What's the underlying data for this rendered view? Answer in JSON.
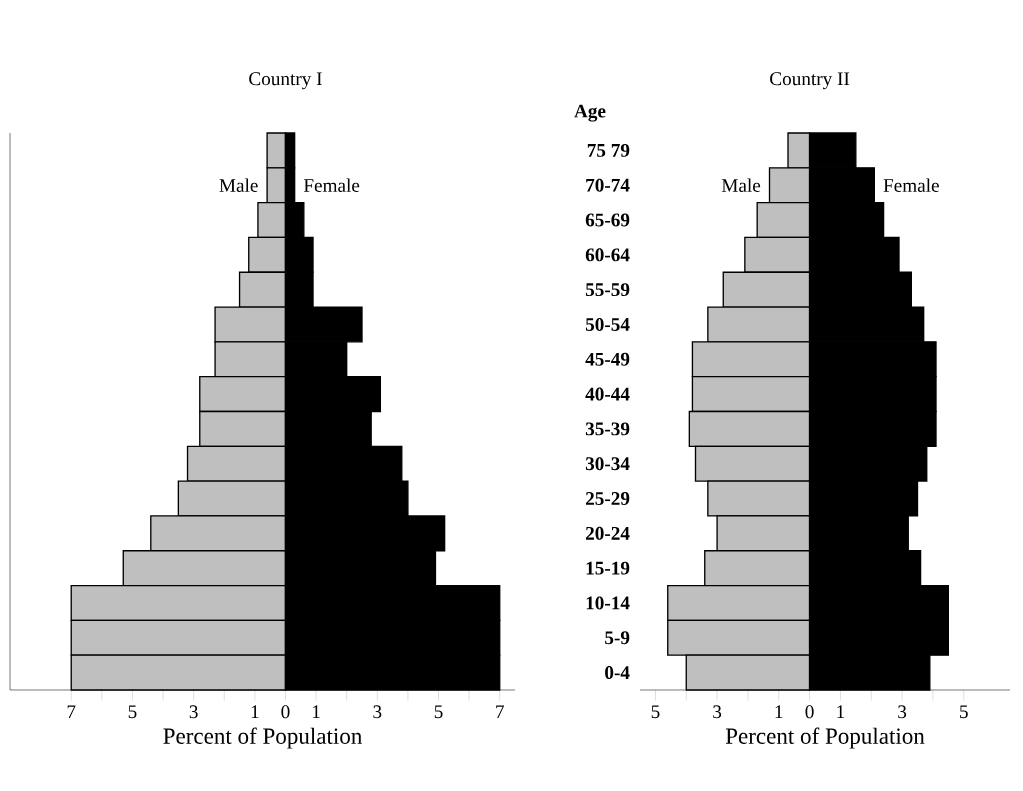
{
  "chart_data": [
    {
      "type": "bar",
      "orientation": "horizontal",
      "stacked": true,
      "title": "Country I",
      "xlabel": "Percent of Population",
      "tick_labels": "x",
      "legend": false,
      "categories": [
        null,
        null,
        null,
        null,
        null,
        null,
        null,
        null,
        null,
        null,
        null,
        null,
        null,
        null,
        null,
        null
      ],
      "series": [
        {
          "name": "Male",
          "color": "#bfbfbf",
          "values": [
            -0.6,
            -0.6,
            -0.9,
            -1.2,
            -1.5,
            -2.3,
            -2.3,
            -2.8,
            -2.8,
            -3.2,
            -3.5,
            -4.4,
            -5.3,
            -7.0,
            -7.0,
            -7.0
          ]
        },
        {
          "name": "Female",
          "color": "#000000",
          "values": [
            0.3,
            0.3,
            0.6,
            0.9,
            0.9,
            2.5,
            2.0,
            3.1,
            2.8,
            3.8,
            4.0,
            5.2,
            4.9,
            7.0,
            7.0,
            7.0
          ]
        }
      ],
      "xlim": [
        -9,
        7.5
      ],
      "xticks": [
        {
          "value": -7,
          "label": "7"
        },
        {
          "value": -6,
          "label": null
        },
        {
          "value": -5,
          "label": "5"
        },
        {
          "value": -4,
          "label": null
        },
        {
          "value": -3,
          "label": "3"
        },
        {
          "value": -2,
          "label": null
        },
        {
          "value": -1,
          "label": "1"
        },
        0,
        1,
        {
          "value": 2,
          "label": null
        },
        3,
        {
          "value": 4,
          "label": null
        },
        5,
        {
          "value": 6,
          "label": null
        },
        7
      ]
    },
    {
      "type": "bar",
      "orientation": "horizontal",
      "stacked": true,
      "title": "Country II",
      "xlabel": "Percent of Population",
      "ylabel": "Age",
      "legend": false,
      "categories": [
        "75 79",
        "70-74",
        "65-69",
        "60-64",
        "55-59",
        "50-54",
        "45-49",
        "40-44",
        "35-39",
        "30-34",
        "25-29",
        "20-24",
        "15-19",
        "10-14",
        "5-9",
        "0-4"
      ],
      "series": [
        {
          "name": "Male",
          "color": "#bfbfbf",
          "values": [
            -0.7,
            -1.3,
            -1.7,
            -2.1,
            -2.8,
            -3.3,
            -3.8,
            -3.8,
            -3.9,
            -3.7,
            -3.3,
            -3.0,
            -3.4,
            -4.6,
            -4.6,
            -4.0
          ]
        },
        {
          "name": "Female",
          "color": "#000000",
          "values": [
            1.5,
            2.1,
            2.4,
            2.9,
            3.3,
            3.7,
            4.1,
            4.1,
            4.1,
            3.8,
            3.5,
            3.2,
            3.6,
            4.5,
            4.5,
            3.9
          ]
        }
      ],
      "xlim": [
        -5.5,
        6.5
      ],
      "xticks": [
        {
          "value": -5,
          "label": "5"
        },
        {
          "value": -4,
          "label": null
        },
        {
          "value": -3,
          "label": "3"
        },
        {
          "value": -2,
          "label": null
        },
        {
          "value": -1,
          "label": "1"
        },
        0,
        1,
        {
          "value": 2,
          "label": null
        },
        3,
        {
          "value": 4,
          "label": null
        },
        5
      ]
    }
  ]
}
